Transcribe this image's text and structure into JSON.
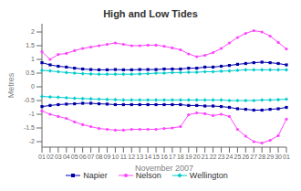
{
  "chart_data": {
    "type": "line",
    "title": "High and Low Tides",
    "xlabel": "November 2007",
    "ylabel": "Metres",
    "categories": [
      "01",
      "02",
      "03",
      "04",
      "05",
      "06",
      "07",
      "08",
      "09",
      "10",
      "11",
      "12",
      "13",
      "14",
      "15",
      "16",
      "17",
      "18",
      "19",
      "20",
      "21",
      "22",
      "23",
      "24",
      "25",
      "26",
      "27",
      "28",
      "29",
      "30",
      "01"
    ],
    "ylim": [
      -2.2,
      2.3
    ],
    "yticks": [
      -2,
      -1.5,
      -1,
      -0.5,
      0,
      0.5,
      1,
      1.5,
      2
    ],
    "grid": false,
    "legend": "bottom",
    "series": [
      {
        "name": "Napier",
        "color": "#0000aa",
        "marker": "square",
        "values": [
          0.88,
          0.8,
          0.75,
          0.72,
          0.68,
          0.65,
          0.63,
          0.62,
          0.62,
          0.63,
          0.62,
          0.62,
          0.63,
          0.63,
          0.63,
          0.65,
          0.65,
          0.65,
          0.68,
          0.68,
          0.72,
          0.72,
          0.75,
          0.78,
          0.82,
          0.85,
          0.88,
          0.9,
          0.88,
          0.85,
          0.8
        ]
      },
      {
        "name": "Napier",
        "color": "#0000aa",
        "marker": "square",
        "values": [
          -0.72,
          -0.68,
          -0.65,
          -0.63,
          -0.62,
          -0.6,
          -0.6,
          -0.62,
          -0.63,
          -0.65,
          -0.65,
          -0.65,
          -0.65,
          -0.65,
          -0.65,
          -0.65,
          -0.65,
          -0.65,
          -0.68,
          -0.68,
          -0.7,
          -0.7,
          -0.72,
          -0.75,
          -0.8,
          -0.82,
          -0.85,
          -0.85,
          -0.82,
          -0.8,
          -0.75
        ]
      },
      {
        "name": "Nelson",
        "color": "#ff44ff",
        "marker": "circle",
        "values": [
          1.28,
          1.0,
          1.18,
          1.22,
          1.32,
          1.4,
          1.45,
          1.5,
          1.55,
          1.6,
          1.55,
          1.5,
          1.5,
          1.52,
          1.52,
          1.48,
          1.42,
          1.35,
          1.2,
          1.1,
          1.15,
          1.25,
          1.4,
          1.6,
          1.8,
          1.95,
          2.05,
          2.0,
          1.85,
          1.62,
          1.38
        ]
      },
      {
        "name": "Nelson",
        "color": "#ff44ff",
        "marker": "circle",
        "values": [
          -0.88,
          -1.0,
          -1.08,
          -1.15,
          -1.28,
          -1.38,
          -1.45,
          -1.52,
          -1.55,
          -1.58,
          -1.58,
          -1.55,
          -1.55,
          -1.55,
          -1.55,
          -1.52,
          -1.5,
          -1.45,
          -1.02,
          -0.95,
          -0.98,
          -1.05,
          -1.0,
          -1.08,
          -1.55,
          -1.8,
          -2.0,
          -2.05,
          -1.95,
          -1.78,
          -1.18
        ]
      },
      {
        "name": "Wellington",
        "color": "#00cccc",
        "marker": "diamond",
        "values": [
          0.6,
          0.58,
          0.55,
          0.52,
          0.5,
          0.48,
          0.47,
          0.46,
          0.46,
          0.46,
          0.46,
          0.46,
          0.47,
          0.48,
          0.5,
          0.5,
          0.52,
          0.52,
          0.53,
          0.53,
          0.55,
          0.55,
          0.57,
          0.58,
          0.6,
          0.62,
          0.62,
          0.62,
          0.62,
          0.62,
          0.62
        ]
      },
      {
        "name": "Wellington",
        "color": "#00cccc",
        "marker": "diamond",
        "values": [
          -0.35,
          -0.37,
          -0.38,
          -0.4,
          -0.42,
          -0.43,
          -0.44,
          -0.45,
          -0.46,
          -0.47,
          -0.48,
          -0.48,
          -0.48,
          -0.48,
          -0.48,
          -0.48,
          -0.48,
          -0.48,
          -0.48,
          -0.48,
          -0.48,
          -0.48,
          -0.48,
          -0.5,
          -0.5,
          -0.5,
          -0.5,
          -0.48,
          -0.48,
          -0.47,
          -0.45
        ]
      }
    ]
  }
}
